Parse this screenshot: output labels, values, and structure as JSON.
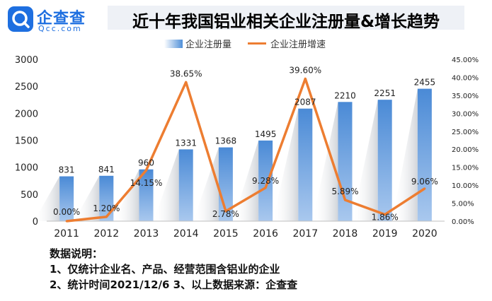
{
  "brand": {
    "name": "企查查",
    "sub": "Qcc.com"
  },
  "chart_data": {
    "type": "bar",
    "title": "近十年我国铝业相关企业注册量&增长趋势",
    "categories": [
      "2011",
      "2012",
      "2013",
      "2014",
      "2015",
      "2016",
      "2017",
      "2018",
      "2019",
      "2020"
    ],
    "series": [
      {
        "name": "企业注册量",
        "type": "bar",
        "axis": "left",
        "values": [
          831,
          841,
          960,
          1331,
          1368,
          1495,
          2087,
          2210,
          2251,
          2455
        ],
        "labels": [
          "831",
          "841",
          "960",
          "1331",
          "1368",
          "1495",
          "2087",
          "2210",
          "2251",
          "2455"
        ]
      },
      {
        "name": "企业注册增速",
        "type": "line",
        "axis": "right",
        "values": [
          0.0,
          1.2,
          14.15,
          38.65,
          2.78,
          9.28,
          39.6,
          5.89,
          1.86,
          9.06
        ],
        "labels": [
          "0.00%",
          "1.20%",
          "14.15%",
          "38.65%",
          "2.78%",
          "9.28%",
          "39.60%",
          "5.89%",
          "1.86%",
          "9.06%"
        ]
      }
    ],
    "ylim": [
      0,
      3000
    ],
    "y_ticks": [
      "0",
      "500",
      "1000",
      "1500",
      "2000",
      "2500",
      "3000"
    ],
    "y2lim": [
      0,
      45
    ],
    "y2_ticks": [
      "0.00%",
      "5.00%",
      "10.00%",
      "15.00%",
      "20.00%",
      "25.00%",
      "30.00%",
      "35.00%",
      "40.00%",
      "45.00%"
    ],
    "legend_position": "top",
    "grid": false,
    "colors": {
      "bar": "#4f8fd8",
      "line": "#ed7d31"
    }
  },
  "notes": {
    "heading": "数据说明：",
    "line1": "1、仅统计企业名、产品、经营范围含铝业的企业",
    "line2": "2、统计时间2021/12/6   3、以上数据来源：企查查"
  }
}
